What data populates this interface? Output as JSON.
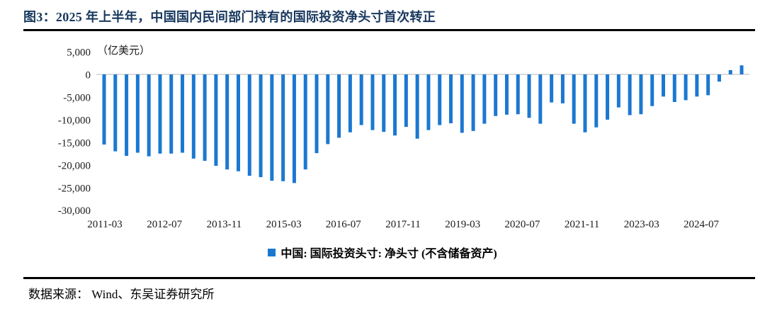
{
  "page": {
    "title": "图3：2025 年上半年，中国国内民间部门持有的国际投资净头寸首次转正",
    "source": "数据来源： Wind、东吴证券研究所"
  },
  "chart_data": {
    "type": "bar",
    "title": "图3：2025 年上半年，中国国内民间部门持有的国际投资净头寸首次转正",
    "unit_label": "（亿美元）",
    "xlabel": "",
    "ylabel": "",
    "ylim": [
      -30000,
      5000
    ],
    "grid": false,
    "bar_color": "#1B78D1",
    "zero_line_color": "#DCDCDC",
    "legend_position": "bottom-center",
    "legend": [
      {
        "label": "中国: 国际投资头寸: 净头寸 (不含储备资产)",
        "color": "#1B78D1"
      }
    ],
    "y_ticks": [
      {
        "value": 5000,
        "label": "5,000"
      },
      {
        "value": 0,
        "label": "0"
      },
      {
        "value": -5000,
        "label": "-5,000"
      },
      {
        "value": -10000,
        "label": "-10,000"
      },
      {
        "value": -15000,
        "label": "-15,000"
      },
      {
        "value": -20000,
        "label": "-20,000"
      },
      {
        "value": -25000,
        "label": "-25,000"
      },
      {
        "value": -30000,
        "label": "-30,000"
      }
    ],
    "x_tick_labels": [
      "2011-03",
      "2012-07",
      "2013-11",
      "2015-03",
      "2016-07",
      "2017-11",
      "2019-03",
      "2020-07",
      "2021-11",
      "2023-03",
      "2024-07"
    ],
    "categories": [
      "2011-03",
      "2011-06",
      "2011-09",
      "2011-12",
      "2012-03",
      "2012-06",
      "2012-09",
      "2012-12",
      "2013-03",
      "2013-06",
      "2013-09",
      "2013-12",
      "2014-03",
      "2014-06",
      "2014-09",
      "2014-12",
      "2015-03",
      "2015-06",
      "2015-09",
      "2015-12",
      "2016-03",
      "2016-06",
      "2016-09",
      "2016-12",
      "2017-03",
      "2017-06",
      "2017-09",
      "2017-12",
      "2018-03",
      "2018-06",
      "2018-09",
      "2018-12",
      "2019-03",
      "2019-06",
      "2019-09",
      "2019-12",
      "2020-03",
      "2020-06",
      "2020-09",
      "2020-12",
      "2021-03",
      "2021-06",
      "2021-09",
      "2021-12",
      "2022-03",
      "2022-06",
      "2022-09",
      "2022-12",
      "2023-03",
      "2023-06",
      "2023-09",
      "2023-12",
      "2024-03",
      "2024-06",
      "2024-09",
      "2024-12",
      "2025-03",
      "2025-06"
    ],
    "values": [
      -15500,
      -17000,
      -18000,
      -17300,
      -18100,
      -17500,
      -17500,
      -17300,
      -18600,
      -19100,
      -20200,
      -21000,
      -21400,
      -22400,
      -22700,
      -23500,
      -23600,
      -24000,
      -21000,
      -17400,
      -15400,
      -14000,
      -12800,
      -11200,
      -12300,
      -12700,
      -13500,
      -11600,
      -14200,
      -12300,
      -11200,
      -10800,
      -12900,
      -12500,
      -10900,
      -9200,
      -8900,
      -8800,
      -9600,
      -10900,
      -6200,
      -6400,
      -10900,
      -12800,
      -11700,
      -10000,
      -7300,
      -9000,
      -8800,
      -7000,
      -4900,
      -6100,
      -5700,
      -4900,
      -4600,
      -1600,
      950,
      2000
    ]
  }
}
